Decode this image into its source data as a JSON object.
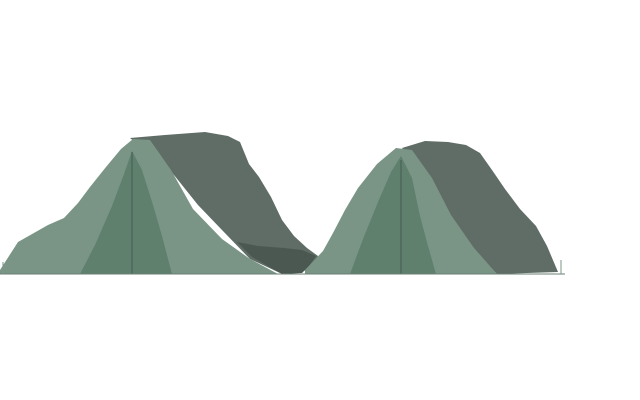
{
  "scene": {
    "colors": {
      "background": "#ffffff",
      "light_face": "#7a9586",
      "dark_face": "#5f6d66",
      "inner_green": "#5e806d",
      "ridge_line": "#4f695c",
      "saddle_shadow": "#4b5751"
    }
  }
}
